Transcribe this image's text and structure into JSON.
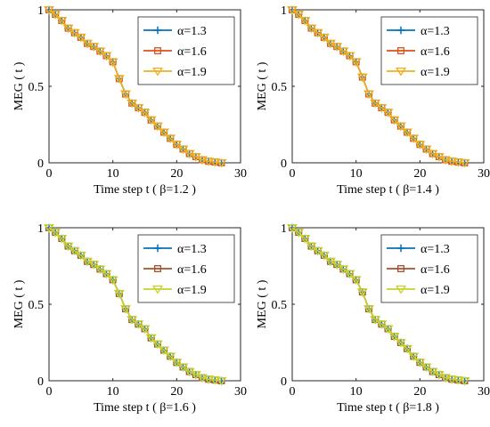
{
  "chart_data": [
    {
      "type": "line",
      "xlabel": "Time step t ( β=1.2 )",
      "ylabel": "MEG ( t )",
      "xlim": [
        0,
        30
      ],
      "ylim": [
        0,
        1
      ],
      "xticks": [
        "0",
        "10",
        "20",
        "30"
      ],
      "yticks": [
        "0",
        "0.5",
        "1"
      ],
      "grid": false,
      "legend_position": "top-right",
      "x": [
        0,
        1,
        2,
        3,
        4,
        5,
        6,
        7,
        8,
        9,
        10,
        11,
        12,
        13,
        14,
        15,
        16,
        17,
        18,
        19,
        20,
        21,
        22,
        23,
        24,
        25,
        26,
        27
      ],
      "series": [
        {
          "name": "α=1.3",
          "color": "#0072BD",
          "marker": "plus",
          "values": [
            1.0,
            0.97,
            0.93,
            0.88,
            0.85,
            0.82,
            0.78,
            0.76,
            0.73,
            0.7,
            0.66,
            0.55,
            0.45,
            0.39,
            0.36,
            0.33,
            0.28,
            0.24,
            0.2,
            0.16,
            0.12,
            0.09,
            0.06,
            0.04,
            0.02,
            0.01,
            0.005,
            0.0
          ]
        },
        {
          "name": "α=1.6",
          "color": "#D95319",
          "marker": "square",
          "values": [
            1.0,
            0.97,
            0.93,
            0.88,
            0.85,
            0.82,
            0.78,
            0.76,
            0.73,
            0.7,
            0.66,
            0.55,
            0.45,
            0.39,
            0.36,
            0.33,
            0.28,
            0.24,
            0.2,
            0.16,
            0.12,
            0.09,
            0.06,
            0.04,
            0.02,
            0.01,
            0.005,
            0.0
          ]
        },
        {
          "name": "α=1.9",
          "color": "#EDB120",
          "marker": "triangle-down",
          "values": [
            1.0,
            0.97,
            0.93,
            0.88,
            0.85,
            0.82,
            0.78,
            0.76,
            0.73,
            0.7,
            0.66,
            0.55,
            0.45,
            0.39,
            0.36,
            0.33,
            0.28,
            0.24,
            0.2,
            0.16,
            0.12,
            0.09,
            0.06,
            0.04,
            0.02,
            0.01,
            0.005,
            0.0
          ]
        }
      ]
    },
    {
      "type": "line",
      "xlabel": "Time step t ( β=1.4 )",
      "ylabel": "MEG ( t )",
      "xlim": [
        0,
        30
      ],
      "ylim": [
        0,
        1
      ],
      "xticks": [
        "0",
        "10",
        "20",
        "30"
      ],
      "yticks": [
        "0",
        "0.5",
        "1"
      ],
      "grid": false,
      "legend_position": "top-right",
      "x": [
        0,
        1,
        2,
        3,
        4,
        5,
        6,
        7,
        8,
        9,
        10,
        11,
        12,
        13,
        14,
        15,
        16,
        17,
        18,
        19,
        20,
        21,
        22,
        23,
        24,
        25,
        26,
        27
      ],
      "series": [
        {
          "name": "α=1.3",
          "color": "#0072BD",
          "marker": "plus",
          "values": [
            1.0,
            0.97,
            0.93,
            0.88,
            0.85,
            0.82,
            0.78,
            0.76,
            0.73,
            0.7,
            0.66,
            0.56,
            0.45,
            0.39,
            0.36,
            0.33,
            0.28,
            0.24,
            0.2,
            0.16,
            0.12,
            0.09,
            0.06,
            0.04,
            0.02,
            0.01,
            0.005,
            0.0
          ]
        },
        {
          "name": "α=1.6",
          "color": "#D95319",
          "marker": "square",
          "values": [
            1.0,
            0.97,
            0.93,
            0.88,
            0.85,
            0.82,
            0.78,
            0.76,
            0.73,
            0.7,
            0.66,
            0.56,
            0.45,
            0.39,
            0.36,
            0.33,
            0.28,
            0.24,
            0.2,
            0.16,
            0.12,
            0.09,
            0.06,
            0.04,
            0.02,
            0.01,
            0.005,
            0.0
          ]
        },
        {
          "name": "α=1.9",
          "color": "#EDB120",
          "marker": "triangle-down",
          "values": [
            1.0,
            0.97,
            0.93,
            0.88,
            0.85,
            0.82,
            0.78,
            0.76,
            0.73,
            0.7,
            0.66,
            0.56,
            0.45,
            0.39,
            0.36,
            0.33,
            0.28,
            0.24,
            0.2,
            0.16,
            0.12,
            0.09,
            0.06,
            0.04,
            0.02,
            0.01,
            0.005,
            0.0
          ]
        }
      ]
    },
    {
      "type": "line",
      "xlabel": "Time step t ( β=1.6 )",
      "ylabel": "MEG ( t )",
      "xlim": [
        0,
        30
      ],
      "ylim": [
        0,
        1
      ],
      "xticks": [
        "0",
        "10",
        "20",
        "30"
      ],
      "yticks": [
        "0",
        "0.5",
        "1"
      ],
      "grid": false,
      "legend_position": "top-right",
      "x": [
        0,
        1,
        2,
        3,
        4,
        5,
        6,
        7,
        8,
        9,
        10,
        11,
        12,
        13,
        14,
        15,
        16,
        17,
        18,
        19,
        20,
        21,
        22,
        23,
        24,
        25,
        26,
        27
      ],
      "series": [
        {
          "name": "α=1.3",
          "color": "#0072BD",
          "marker": "plus",
          "values": [
            1.0,
            0.97,
            0.93,
            0.88,
            0.85,
            0.82,
            0.78,
            0.76,
            0.73,
            0.7,
            0.66,
            0.57,
            0.47,
            0.4,
            0.37,
            0.34,
            0.28,
            0.24,
            0.2,
            0.16,
            0.12,
            0.09,
            0.06,
            0.04,
            0.02,
            0.01,
            0.005,
            0.0
          ]
        },
        {
          "name": "α=1.6",
          "color": "#A0522D",
          "marker": "square",
          "values": [
            1.0,
            0.97,
            0.93,
            0.88,
            0.85,
            0.82,
            0.78,
            0.76,
            0.73,
            0.7,
            0.66,
            0.57,
            0.47,
            0.4,
            0.37,
            0.34,
            0.28,
            0.24,
            0.2,
            0.16,
            0.12,
            0.09,
            0.06,
            0.04,
            0.02,
            0.01,
            0.005,
            0.0
          ]
        },
        {
          "name": "α=1.9",
          "color": "#C8D22A",
          "marker": "triangle-down",
          "values": [
            1.0,
            0.97,
            0.93,
            0.88,
            0.85,
            0.82,
            0.78,
            0.76,
            0.73,
            0.7,
            0.66,
            0.57,
            0.47,
            0.4,
            0.37,
            0.34,
            0.28,
            0.24,
            0.2,
            0.16,
            0.12,
            0.09,
            0.06,
            0.04,
            0.02,
            0.01,
            0.005,
            0.0
          ]
        }
      ]
    },
    {
      "type": "line",
      "xlabel": "Time step t ( β=1.8 )",
      "ylabel": "MEG ( t )",
      "xlim": [
        0,
        30
      ],
      "ylim": [
        0,
        1
      ],
      "xticks": [
        "0",
        "10",
        "20",
        "30"
      ],
      "yticks": [
        "0",
        "0.5",
        "1"
      ],
      "grid": false,
      "legend_position": "top-right",
      "x": [
        0,
        1,
        2,
        3,
        4,
        5,
        6,
        7,
        8,
        9,
        10,
        11,
        12,
        13,
        14,
        15,
        16,
        17,
        18,
        19,
        20,
        21,
        22,
        23,
        24,
        25,
        26,
        27
      ],
      "series": [
        {
          "name": "α=1.3",
          "color": "#0072BD",
          "marker": "plus",
          "values": [
            1.0,
            0.97,
            0.93,
            0.88,
            0.85,
            0.82,
            0.78,
            0.76,
            0.73,
            0.7,
            0.66,
            0.58,
            0.47,
            0.4,
            0.37,
            0.34,
            0.29,
            0.25,
            0.21,
            0.16,
            0.12,
            0.09,
            0.06,
            0.04,
            0.02,
            0.01,
            0.005,
            0.0
          ]
        },
        {
          "name": "α=1.6",
          "color": "#A0522D",
          "marker": "square",
          "values": [
            1.0,
            0.97,
            0.93,
            0.88,
            0.85,
            0.82,
            0.78,
            0.76,
            0.73,
            0.7,
            0.66,
            0.58,
            0.47,
            0.4,
            0.37,
            0.34,
            0.29,
            0.25,
            0.21,
            0.16,
            0.12,
            0.09,
            0.06,
            0.04,
            0.02,
            0.01,
            0.005,
            0.0
          ]
        },
        {
          "name": "α=1.9",
          "color": "#C8D22A",
          "marker": "triangle-down",
          "values": [
            1.0,
            0.97,
            0.93,
            0.88,
            0.85,
            0.82,
            0.78,
            0.76,
            0.73,
            0.7,
            0.66,
            0.58,
            0.47,
            0.4,
            0.37,
            0.34,
            0.29,
            0.25,
            0.21,
            0.16,
            0.12,
            0.09,
            0.06,
            0.04,
            0.02,
            0.01,
            0.005,
            0.0
          ]
        }
      ]
    }
  ]
}
